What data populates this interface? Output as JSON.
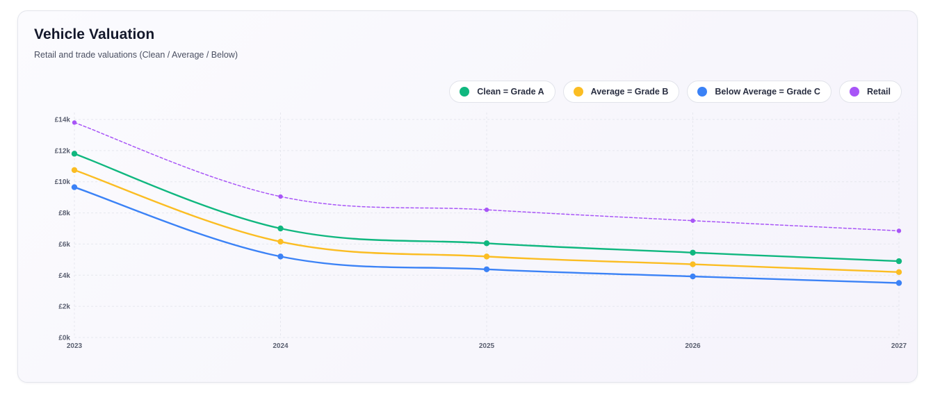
{
  "header": {
    "title": "Vehicle Valuation",
    "subtitle": "Retail and trade valuations (Clean / Average / Below)"
  },
  "legend": [
    {
      "label": "Clean = Grade A",
      "color": "#10b77f"
    },
    {
      "label": "Average = Grade B",
      "color": "#fbbd23"
    },
    {
      "label": "Below Average = Grade C",
      "color": "#3b82f6"
    },
    {
      "label": "Retail",
      "color": "#a855f7"
    }
  ],
  "chart_data": {
    "type": "line",
    "x": [
      "2023",
      "2024",
      "2025",
      "2026",
      "2027"
    ],
    "y_ticks": [
      {
        "value": 0,
        "label": "£0k"
      },
      {
        "value": 2000,
        "label": "£2k"
      },
      {
        "value": 4000,
        "label": "£4k"
      },
      {
        "value": 6000,
        "label": "£6k"
      },
      {
        "value": 8000,
        "label": "£8k"
      },
      {
        "value": 10000,
        "label": "£10k"
      },
      {
        "value": 12000,
        "label": "£12k"
      },
      {
        "value": 14000,
        "label": "£14k"
      }
    ],
    "ylim": [
      0,
      14000
    ],
    "grid": true,
    "legend_position": "top-right",
    "series": [
      {
        "name": "Clean = Grade A",
        "color": "#10b77f",
        "style": "solid",
        "values": [
          11800,
          7000,
          6050,
          5450,
          4900
        ]
      },
      {
        "name": "Average = Grade B",
        "color": "#fbbd23",
        "style": "solid",
        "values": [
          10750,
          6150,
          5200,
          4700,
          4200
        ]
      },
      {
        "name": "Below Average = Grade C",
        "color": "#3b82f6",
        "style": "solid",
        "values": [
          9650,
          5200,
          4380,
          3920,
          3500
        ]
      },
      {
        "name": "Retail",
        "color": "#a855f7",
        "style": "dashed",
        "values": [
          13800,
          9050,
          8200,
          7500,
          6850
        ]
      }
    ]
  }
}
